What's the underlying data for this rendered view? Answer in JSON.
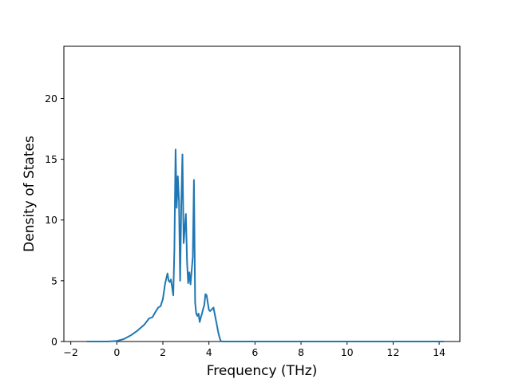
{
  "chart_data": {
    "type": "line",
    "title": "",
    "xlabel": "Frequency (THz)",
    "ylabel": "Density of States",
    "xlim": [
      -2.3,
      14.9
    ],
    "ylim": [
      0,
      24.3
    ],
    "xticks": [
      -2,
      0,
      2,
      4,
      6,
      8,
      10,
      12,
      14
    ],
    "yticks": [
      0,
      5,
      10,
      15,
      20
    ],
    "grid": false,
    "legend": "none",
    "series": [
      {
        "color": "#1f77b4",
        "x": [
          -1.3,
          -0.8,
          -0.4,
          0.0,
          0.3,
          0.6,
          0.9,
          1.2,
          1.4,
          1.55,
          1.7,
          1.8,
          1.9,
          2.0,
          2.1,
          2.2,
          2.25,
          2.3,
          2.35,
          2.4,
          2.45,
          2.5,
          2.55,
          2.6,
          2.65,
          2.7,
          2.75,
          2.8,
          2.85,
          2.9,
          2.95,
          3.0,
          3.05,
          3.1,
          3.15,
          3.2,
          3.25,
          3.3,
          3.35,
          3.4,
          3.45,
          3.5,
          3.55,
          3.6,
          3.65,
          3.7,
          3.75,
          3.8,
          3.85,
          3.9,
          3.95,
          4.0,
          4.05,
          4.1,
          4.15,
          4.2,
          4.3,
          4.35,
          4.4,
          4.45,
          4.5,
          4.55,
          4.6,
          4.7,
          4.8,
          4.85,
          4.9,
          5.0,
          5.1,
          5.2,
          5.3,
          5.5,
          6.0,
          8.0,
          10.0,
          12.0,
          12.1,
          12.2,
          12.3,
          12.35,
          12.4,
          12.45,
          12.5,
          12.55,
          12.6,
          12.65,
          12.7,
          12.75,
          12.8,
          12.85,
          12.9,
          12.95,
          13.0,
          13.2,
          14.0,
          14.2
        ],
        "y": [
          0.0,
          0.0,
          0.0,
          0.05,
          0.2,
          0.5,
          0.9,
          1.4,
          1.9,
          2.0,
          2.5,
          2.8,
          2.9,
          3.5,
          4.8,
          5.6,
          5.0,
          4.9,
          5.1,
          4.5,
          3.8,
          7.5,
          15.8,
          11.0,
          13.6,
          11.5,
          5.0,
          11.5,
          15.4,
          8.1,
          9.3,
          10.5,
          6.5,
          4.8,
          5.7,
          4.7,
          5.8,
          7.0,
          13.3,
          3.2,
          2.3,
          2.1,
          2.3,
          1.6,
          2.0,
          2.3,
          2.7,
          3.0,
          3.9,
          3.8,
          3.2,
          2.6,
          2.5,
          2.6,
          2.7,
          2.8,
          1.8,
          1.3,
          0.8,
          0.4,
          0.1,
          0.0,
          0.0,
          0.0,
          0.0,
          0.0,
          0.0,
          0.0,
          0.0,
          0.0,
          0.0,
          0.0,
          0.0,
          0.0,
          0.0,
          0.0,
          0.0,
          0.0,
          0.0,
          0.0,
          0.0,
          0.0,
          0.0,
          0.0,
          0.0,
          0.0,
          0.0,
          0.0,
          0.0,
          0.0,
          0.0,
          0.0,
          0.0,
          0.0,
          0.0,
          0.0
        ]
      }
    ]
  }
}
